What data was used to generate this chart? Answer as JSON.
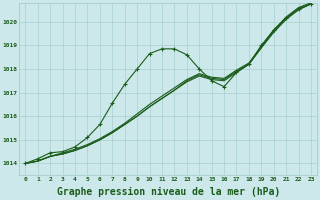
{
  "background_color": "#cde8ea",
  "grid_color": "#a0c8c8",
  "line_color": "#1a5c1a",
  "xlabel": "Graphe pression niveau de la mer (hPa)",
  "xlabel_fontsize": 7,
  "ylim": [
    1013.5,
    1020.8
  ],
  "xlim": [
    -0.5,
    23.5
  ],
  "yticks": [
    1014,
    1015,
    1016,
    1017,
    1018,
    1019,
    1020
  ],
  "xticks": [
    0,
    1,
    2,
    3,
    4,
    5,
    6,
    7,
    8,
    9,
    10,
    11,
    12,
    13,
    14,
    15,
    16,
    17,
    18,
    19,
    20,
    21,
    22,
    23
  ],
  "series_curved": {
    "x": [
      0,
      1,
      2,
      3,
      4,
      5,
      6,
      7,
      8,
      9,
      10,
      11,
      12,
      13,
      14,
      15,
      16,
      17,
      18,
      19,
      20,
      21,
      22,
      23
    ],
    "y": [
      1014.0,
      1014.2,
      1014.45,
      1014.5,
      1014.7,
      1015.1,
      1015.65,
      1016.55,
      1017.35,
      1018.0,
      1018.65,
      1018.85,
      1018.85,
      1018.6,
      1018.0,
      1017.5,
      1017.25,
      1017.85,
      1018.2,
      1019.0,
      1019.65,
      1020.15,
      1020.55,
      1020.75
    ]
  },
  "series_linear1": {
    "x": [
      0,
      1,
      2,
      3,
      4,
      5,
      6,
      7,
      8,
      9,
      10,
      11,
      12,
      13,
      14,
      15,
      16,
      17,
      18,
      19,
      20,
      21,
      22,
      23
    ],
    "y": [
      1014.0,
      1014.1,
      1014.3,
      1014.4,
      1014.55,
      1014.75,
      1015.0,
      1015.3,
      1015.65,
      1016.0,
      1016.4,
      1016.75,
      1017.1,
      1017.45,
      1017.7,
      1017.55,
      1017.5,
      1017.85,
      1018.2,
      1018.9,
      1019.55,
      1020.1,
      1020.5,
      1020.75
    ]
  },
  "series_linear2": {
    "x": [
      0,
      1,
      2,
      3,
      4,
      5,
      6,
      7,
      8,
      9,
      10,
      11,
      12,
      13,
      14,
      15,
      16,
      17,
      18,
      19,
      20,
      21,
      22,
      23
    ],
    "y": [
      1014.0,
      1014.1,
      1014.3,
      1014.4,
      1014.55,
      1014.75,
      1015.0,
      1015.3,
      1015.65,
      1016.0,
      1016.4,
      1016.75,
      1017.1,
      1017.5,
      1017.75,
      1017.6,
      1017.55,
      1017.9,
      1018.2,
      1018.9,
      1019.6,
      1020.15,
      1020.55,
      1020.75
    ]
  },
  "series_linear3": {
    "x": [
      0,
      1,
      2,
      3,
      4,
      5,
      6,
      7,
      8,
      9,
      10,
      11,
      12,
      13,
      14,
      15,
      16,
      17,
      18,
      19,
      20,
      21,
      22,
      23
    ],
    "y": [
      1014.0,
      1014.1,
      1014.3,
      1014.45,
      1014.6,
      1014.8,
      1015.05,
      1015.35,
      1015.7,
      1016.1,
      1016.5,
      1016.85,
      1017.2,
      1017.55,
      1017.8,
      1017.65,
      1017.6,
      1017.95,
      1018.25,
      1018.95,
      1019.65,
      1020.2,
      1020.6,
      1020.8
    ]
  }
}
